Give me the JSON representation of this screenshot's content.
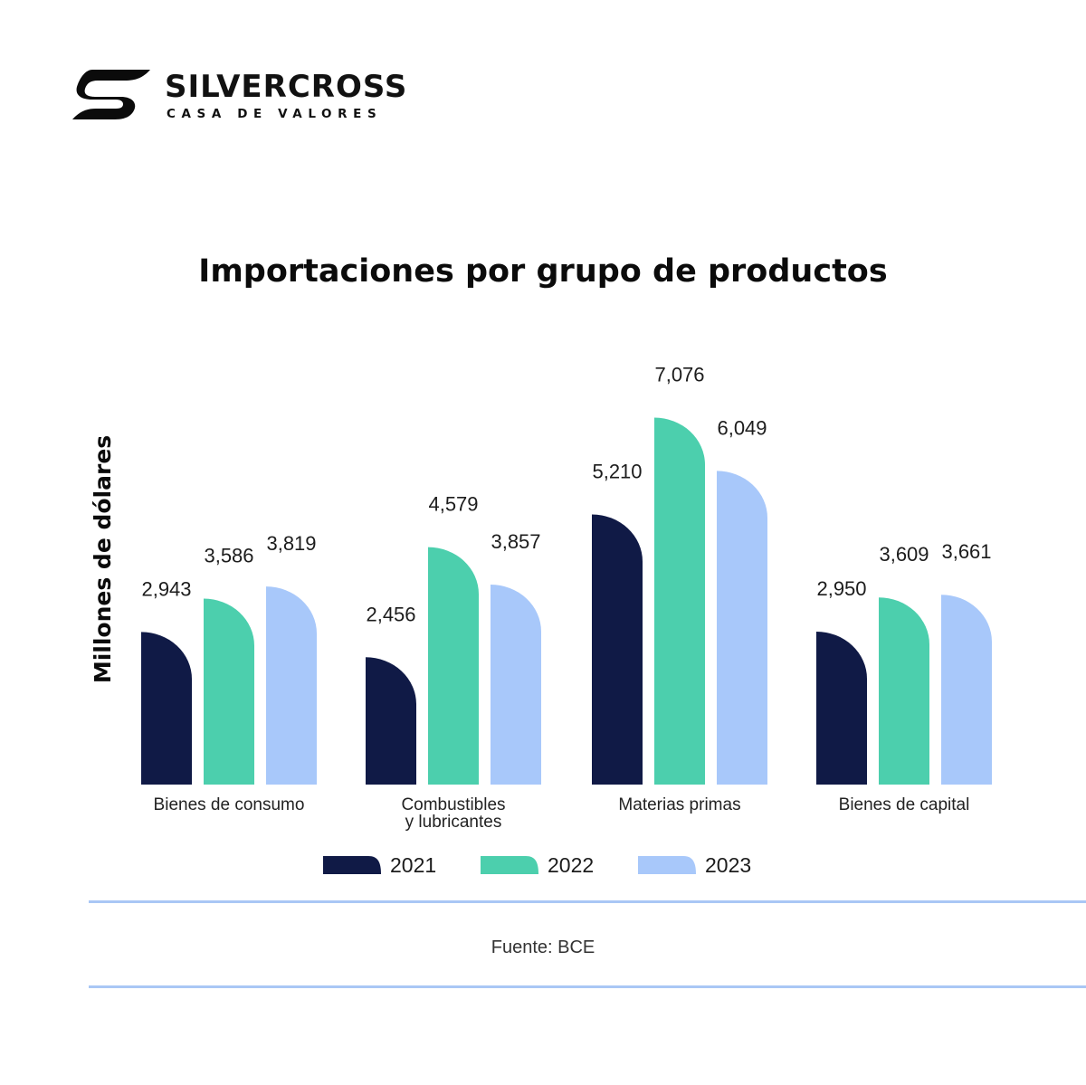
{
  "brand": {
    "name": "SILVERCROSS",
    "tagline": "CASA DE VALORES"
  },
  "chart_data": {
    "type": "bar",
    "title": "Importaciones por grupo de productos",
    "ylabel": "Millones de dólares",
    "xlabel": "",
    "categories": [
      "Bienes de consumo",
      "Combustibles y lubricantes",
      "Materias primas",
      "Bienes de capital"
    ],
    "category_lines": [
      [
        "Bienes de consumo"
      ],
      [
        "Combustibles",
        "y lubricantes"
      ],
      [
        "Materias primas"
      ],
      [
        "Bienes de capital"
      ]
    ],
    "series": [
      {
        "name": "2021",
        "color": "#101a46",
        "values": [
          2943,
          2456,
          5210,
          2950
        ],
        "labels": [
          "2,943",
          "2,456",
          "5,210",
          "2,950"
        ]
      },
      {
        "name": "2022",
        "color": "#4ccfad",
        "values": [
          3586,
          4579,
          7076,
          3609
        ],
        "labels": [
          "3,586",
          "4,579",
          "7,076",
          "3,609"
        ]
      },
      {
        "name": "2023",
        "color": "#a8c8fa",
        "values": [
          3819,
          3857,
          6049,
          3661
        ],
        "labels": [
          "3,819",
          "3,857",
          "6,049",
          "3,661"
        ]
      }
    ],
    "ylim": [
      0,
      7500
    ],
    "grid": false,
    "legend": "bottom"
  },
  "footer": {
    "source": "Fuente: BCE"
  }
}
